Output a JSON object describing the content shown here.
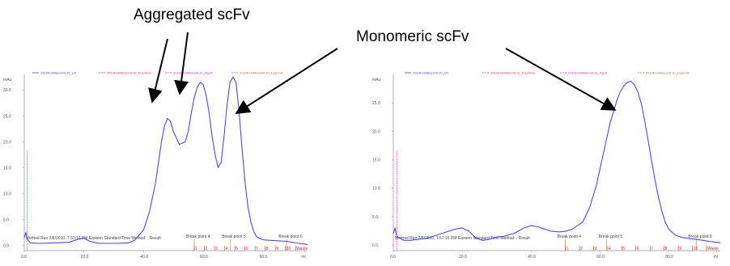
{
  "annotations": {
    "aggregated": "Aggregated scFv",
    "monomeric": "Monomeric scFv"
  },
  "chart_data": [
    {
      "type": "line",
      "legend": [
        {
          "label": "2010Feb08sec04:10_UV",
          "color": "#4a4ae0"
        },
        {
          "label": "2010Feb08sec04:10_Fractions",
          "color": "#e04040"
        },
        {
          "label": "2010Feb08sec04:10_Inject",
          "color": "#d030d0"
        },
        {
          "label": "2010Feb08sec04:10_Logbook",
          "color": "#a07a3a"
        }
      ],
      "ylabel": "mAu",
      "y_ticks": [
        "0.0",
        "5.0",
        "10.0",
        "15.0",
        "20.0",
        "25.0",
        "30.0"
      ],
      "x_ticks": [
        "0.0",
        "20.0",
        "40.0",
        "60.0",
        "80.0",
        "ml"
      ],
      "xlim": [
        0,
        95
      ],
      "ylim": [
        -1,
        33
      ],
      "series": [
        {
          "name": "2010Feb08sec04:10_UV",
          "color": "#4a4ae0",
          "x": [
            0,
            0.5,
            1,
            2,
            5,
            10,
            15,
            18,
            20,
            22,
            25,
            30,
            35,
            37,
            40,
            42,
            44,
            45,
            46,
            47,
            48,
            49,
            50,
            52,
            54,
            55,
            56,
            57,
            58,
            59,
            60,
            61,
            62,
            63,
            64,
            65,
            66,
            67,
            68,
            69,
            70,
            71,
            72,
            73,
            74,
            75,
            76,
            77,
            78,
            80,
            82,
            85,
            88,
            90,
            92,
            95
          ],
          "y": [
            1.5,
            2.5,
            1.2,
            0.5,
            0.4,
            0.5,
            0.6,
            1.2,
            1.4,
            0.8,
            0.4,
            0.4,
            0.5,
            1.0,
            3.0,
            6.5,
            12.0,
            16.0,
            20.0,
            23.0,
            24.5,
            24.0,
            22.0,
            19.5,
            20.0,
            22.0,
            25.5,
            28.5,
            30.5,
            31.5,
            31.0,
            29.0,
            25.5,
            21.0,
            17.5,
            15.0,
            16.0,
            21.0,
            27.0,
            31.5,
            32.5,
            31.5,
            26.0,
            19.0,
            12.5,
            7.5,
            4.5,
            2.6,
            1.6,
            1.1,
            1.0,
            0.9,
            0.8,
            0.6,
            0.4,
            0.2
          ]
        }
      ],
      "run_note": "Method Run 2/8/2010, 7:33:16 PM Eastern Standard Time Method: , Result",
      "markers": [
        {
          "x": 57,
          "label": "Break point 4"
        },
        {
          "x": 69,
          "label": "Break point 5"
        },
        {
          "x": 88,
          "label": "Break point 6"
        }
      ],
      "fractions": [
        "1",
        "2",
        "3",
        "4",
        "5",
        "6",
        "7",
        "8",
        "9",
        "10",
        "Waste"
      ]
    },
    {
      "type": "line",
      "legend": [
        {
          "label": "2010Feb08sec09:10_UV",
          "color": "#4a4ae0"
        },
        {
          "label": "2010Feb08sec09:10_Fractions",
          "color": "#e04040"
        },
        {
          "label": "2010Feb08sec09:10_Inject",
          "color": "#d030d0"
        },
        {
          "label": "2010Feb08sec09:10_Logbook",
          "color": "#a07a3a"
        }
      ],
      "ylabel": "mAu",
      "y_ticks": [
        "0.0",
        "5.0",
        "10.0",
        "15.0",
        "20.0",
        "25.0"
      ],
      "x_ticks": [
        "0.0",
        "20.0",
        "40.0",
        "60.0",
        "80.0",
        "ml"
      ],
      "xlim": [
        0,
        95
      ],
      "ylim": [
        -1,
        30
      ],
      "series": [
        {
          "name": "2010Feb08sec09:10_UV",
          "color": "#4a4ae0",
          "x": [
            0,
            0.5,
            1,
            3,
            5,
            10,
            14,
            16,
            18,
            20,
            22,
            24,
            26,
            28,
            30,
            32,
            35,
            38,
            40,
            42,
            44,
            46,
            48,
            50,
            52,
            55,
            57,
            59,
            61,
            63,
            65,
            66,
            67,
            68,
            69,
            70,
            71,
            72,
            73,
            74,
            75,
            76,
            77,
            78,
            79,
            80,
            82,
            84,
            86,
            88,
            90,
            92,
            95
          ],
          "y": [
            2.0,
            3.0,
            1.5,
            0.8,
            0.8,
            1.2,
            2.0,
            2.4,
            2.8,
            3.0,
            2.4,
            1.2,
            0.8,
            1.0,
            1.4,
            1.5,
            2.0,
            3.0,
            3.4,
            3.2,
            2.8,
            2.4,
            2.3,
            2.4,
            2.8,
            4.0,
            6.5,
            10.5,
            16.0,
            21.5,
            25.5,
            27.0,
            28.0,
            28.6,
            28.8,
            28.2,
            27.0,
            25.0,
            22.0,
            18.5,
            15.0,
            11.5,
            8.5,
            6.0,
            4.0,
            2.8,
            1.7,
            1.3,
            1.1,
            1.0,
            0.8,
            0.6,
            0.4
          ]
        }
      ],
      "run_note": "Method Run 2/8/2010, 1:57:16 PM Eastern Standard Time Method: , Result",
      "markers": [
        {
          "x": 50,
          "label": "Break point 4"
        },
        {
          "x": 62,
          "label": "Break point 5"
        },
        {
          "x": 88,
          "label": "Break point 6"
        }
      ],
      "fractions": [
        "1",
        "2",
        "3",
        "4",
        "5",
        "6",
        "7",
        "8",
        "9",
        "10",
        "Waste"
      ]
    }
  ]
}
